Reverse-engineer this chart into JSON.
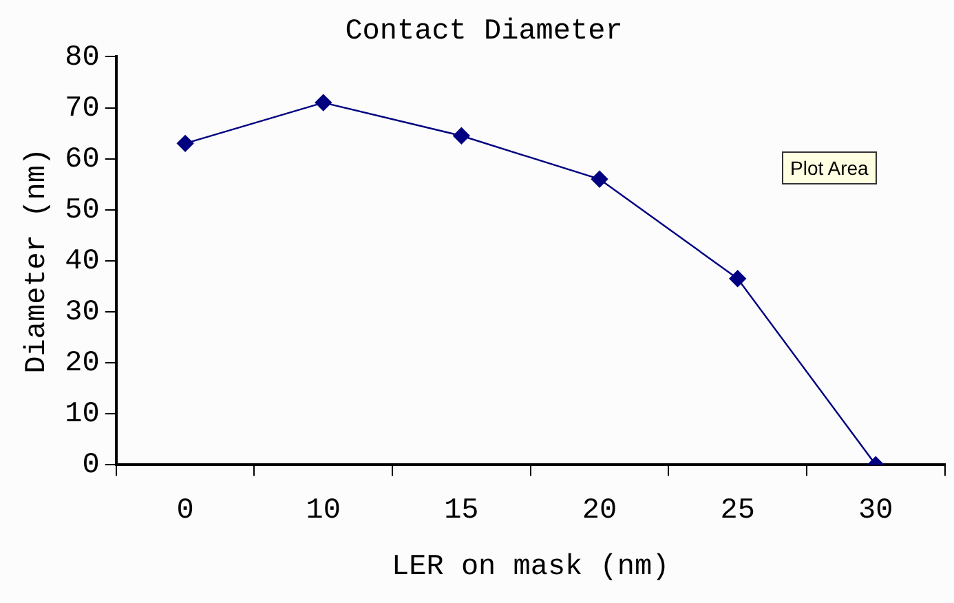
{
  "chart_data": {
    "type": "line",
    "title": "Contact Diameter",
    "xlabel": "LER on mask (nm)",
    "ylabel": "Diameter (nm)",
    "categories": [
      "0",
      "10",
      "15",
      "20",
      "25",
      "30"
    ],
    "series": [
      {
        "color": "#000080",
        "values": [
          63,
          71,
          64.5,
          56,
          36.5,
          0
        ]
      }
    ],
    "ylim": [
      0,
      80
    ],
    "yticks": [
      0,
      10,
      20,
      30,
      40,
      50,
      60,
      70,
      80
    ],
    "grid": false,
    "legend": false,
    "marker": "diamond",
    "line_style": "solid",
    "annotations": [
      "Plot Area"
    ]
  }
}
